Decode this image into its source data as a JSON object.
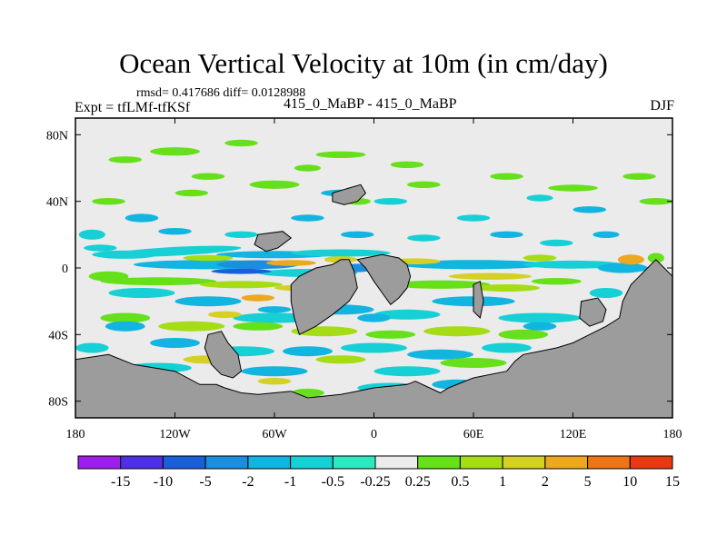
{
  "chart_data": {
    "type": "heatmap",
    "title": "Ocean Vertical Velocity at 10m (in cm/day)",
    "stats_text": "rmsd= 0.417686 diff= 0.0128988",
    "left_label": "Expt = tfLMf-tfKSf",
    "center_label": "415_0_MaBP - 415_0_MaBP",
    "right_label": "DJF",
    "x_axis": {
      "range": [
        -180,
        180
      ],
      "ticks": [
        -180,
        -120,
        -60,
        0,
        60,
        120,
        180
      ],
      "tick_labels": [
        "180",
        "120W",
        "60W",
        "0",
        "60E",
        "120E",
        "180"
      ]
    },
    "y_axis": {
      "range": [
        -90,
        90
      ],
      "ticks": [
        80,
        40,
        0,
        -40,
        -80
      ],
      "tick_labels": [
        "80N",
        "40N",
        "0",
        "40S",
        "80S"
      ]
    },
    "colorbar": {
      "levels": [
        "-15",
        "-10",
        "-5",
        "-2",
        "-1",
        "-0.5",
        "-0.25",
        "0.25",
        "0.5",
        "1",
        "2",
        "5",
        "10",
        "15"
      ],
      "colors": [
        "#9b1fe8",
        "#4f2fe3",
        "#1a5fd8",
        "#1c8ee0",
        "#12b4e0",
        "#16d0d6",
        "#2ee8c0",
        "#ebebeb",
        "#66e01a",
        "#a5dc16",
        "#d4d024",
        "#eca81e",
        "#ec7516",
        "#e63a12"
      ]
    },
    "land_color": "#9c9c9c",
    "neutral_color": "#ebebeb"
  }
}
